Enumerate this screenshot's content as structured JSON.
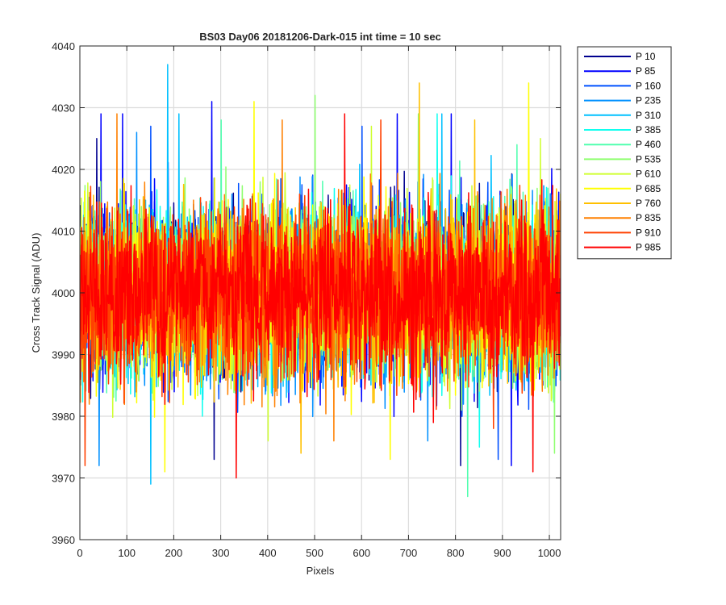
{
  "chart_data": {
    "type": "line",
    "title": "BS03 Day06 20181206-Dark-015 int time = 10 sec",
    "xlabel": "Pixels",
    "ylabel": "Cross Track Signal (ADU)",
    "xlim": [
      0,
      1024
    ],
    "ylim": [
      3960,
      4040
    ],
    "xticks": [
      0,
      100,
      200,
      300,
      400,
      500,
      600,
      700,
      800,
      900,
      1000
    ],
    "yticks": [
      3960,
      3970,
      3980,
      3990,
      4000,
      4010,
      4020,
      4030,
      4040
    ],
    "grid": true,
    "legend_position": "outside-top-right",
    "noise": {
      "mean": 4000,
      "std": 7
    },
    "series": [
      {
        "name": "P 10",
        "color": "#00008f",
        "spikes": [
          [
            35,
            4025
          ],
          [
            285,
            3973
          ],
          [
            810,
            3972
          ]
        ]
      },
      {
        "name": "P 85",
        "color": "#0000ff",
        "spikes": [
          [
            44,
            4029
          ],
          [
            90,
            4029
          ],
          [
            280,
            4031
          ],
          [
            675,
            4029
          ],
          [
            790,
            4029
          ],
          [
            918,
            3972
          ]
        ]
      },
      {
        "name": "P 160",
        "color": "#0050ff",
        "spikes": [
          [
            150,
            4027
          ],
          [
            600,
            4027
          ],
          [
            890,
            3973
          ]
        ]
      },
      {
        "name": "P 235",
        "color": "#0090ff",
        "spikes": [
          [
            120,
            4026
          ],
          [
            740,
            3976
          ],
          [
            40,
            3972
          ]
        ]
      },
      {
        "name": "P 310",
        "color": "#00c0ff",
        "spikes": [
          [
            186,
            4037
          ],
          [
            210,
            4029
          ],
          [
            150,
            3969
          ],
          [
            770,
            4029
          ]
        ]
      },
      {
        "name": "P 385",
        "color": "#10ffef",
        "spikes": [
          [
            260,
            3980
          ],
          [
            760,
            4029
          ],
          [
            850,
            3975
          ]
        ]
      },
      {
        "name": "P 460",
        "color": "#50ffaf",
        "spikes": [
          [
            825,
            3967
          ],
          [
            300,
            4028
          ],
          [
            930,
            4024
          ]
        ]
      },
      {
        "name": "P 535",
        "color": "#8fff70",
        "spikes": [
          [
            500,
            4032
          ],
          [
            720,
            4029
          ],
          [
            1010,
            3974
          ]
        ]
      },
      {
        "name": "P 610",
        "color": "#cfff30",
        "spikes": [
          [
            620,
            4027
          ],
          [
            400,
            3976
          ],
          [
            980,
            4025
          ]
        ]
      },
      {
        "name": "P 685",
        "color": "#ffff00",
        "spikes": [
          [
            370,
            4031
          ],
          [
            955,
            4034
          ],
          [
            180,
            3971
          ],
          [
            660,
            3973
          ]
        ]
      },
      {
        "name": "P 760",
        "color": "#ffc000",
        "spikes": [
          [
            722,
            4034
          ],
          [
            470,
            3974
          ],
          [
            840,
            4028
          ]
        ]
      },
      {
        "name": "P 835",
        "color": "#ff8000",
        "spikes": [
          [
            78,
            4029
          ],
          [
            430,
            4028
          ],
          [
            540,
            3976
          ]
        ]
      },
      {
        "name": "P 910",
        "color": "#ff4000",
        "spikes": [
          [
            640,
            4028
          ],
          [
            10,
            3972
          ],
          [
            880,
            3978
          ]
        ]
      },
      {
        "name": "P 985",
        "color": "#ff0000",
        "spikes": [
          [
            332,
            3970
          ],
          [
            964,
            3971
          ],
          [
            563,
            4029
          ]
        ]
      }
    ]
  }
}
